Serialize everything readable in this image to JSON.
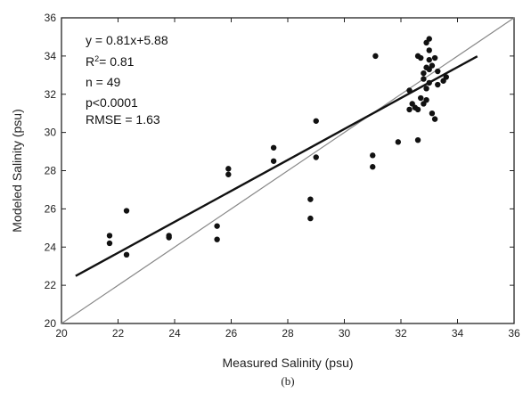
{
  "chart_data": {
    "type": "scatter",
    "panel_label": "(b)",
    "xlabel": "Measured Salinity (psu)",
    "ylabel": "Modeled Salinity (psu)",
    "xlim": [
      20,
      36
    ],
    "ylim": [
      20,
      36
    ],
    "xticks": [
      20,
      22,
      24,
      26,
      28,
      30,
      32,
      34,
      36
    ],
    "yticks": [
      20,
      22,
      24,
      26,
      28,
      30,
      32,
      34,
      36
    ],
    "grid": false,
    "stats": [
      {
        "id": "equation",
        "text": "y = 0.81x+5.88"
      },
      {
        "id": "r2",
        "prefix": "R",
        "sup": "2",
        "suffix": "= 0.81"
      },
      {
        "id": "n",
        "text": "n = 49"
      },
      {
        "id": "p",
        "text": "p<0.0001"
      },
      {
        "id": "rmse",
        "text": "RMSE = 1.63"
      }
    ],
    "regression_line": {
      "slope": 0.81,
      "intercept": 5.88,
      "x_range": [
        20.5,
        34.7
      ]
    },
    "one_to_one_line": {
      "x_range": [
        20,
        36
      ]
    },
    "points": [
      {
        "x": 21.7,
        "y": 24.6
      },
      {
        "x": 21.7,
        "y": 24.2
      },
      {
        "x": 22.3,
        "y": 25.9
      },
      {
        "x": 22.3,
        "y": 23.6
      },
      {
        "x": 23.8,
        "y": 24.6
      },
      {
        "x": 23.8,
        "y": 24.5
      },
      {
        "x": 25.5,
        "y": 25.1
      },
      {
        "x": 25.5,
        "y": 24.4
      },
      {
        "x": 25.9,
        "y": 28.1
      },
      {
        "x": 25.9,
        "y": 27.8
      },
      {
        "x": 27.5,
        "y": 29.2
      },
      {
        "x": 27.5,
        "y": 28.5
      },
      {
        "x": 28.8,
        "y": 26.5
      },
      {
        "x": 28.8,
        "y": 25.5
      },
      {
        "x": 29.0,
        "y": 30.6
      },
      {
        "x": 29.0,
        "y": 28.7
      },
      {
        "x": 31.0,
        "y": 28.8
      },
      {
        "x": 31.0,
        "y": 28.2
      },
      {
        "x": 31.1,
        "y": 34.0
      },
      {
        "x": 31.9,
        "y": 29.5
      },
      {
        "x": 32.3,
        "y": 32.2
      },
      {
        "x": 32.3,
        "y": 31.2
      },
      {
        "x": 32.4,
        "y": 31.5
      },
      {
        "x": 32.5,
        "y": 31.3
      },
      {
        "x": 32.6,
        "y": 29.6
      },
      {
        "x": 32.6,
        "y": 31.2
      },
      {
        "x": 32.6,
        "y": 34.0
      },
      {
        "x": 32.7,
        "y": 31.8
      },
      {
        "x": 32.7,
        "y": 33.9
      },
      {
        "x": 32.8,
        "y": 33.1
      },
      {
        "x": 32.8,
        "y": 32.8
      },
      {
        "x": 32.8,
        "y": 31.5
      },
      {
        "x": 32.9,
        "y": 34.7
      },
      {
        "x": 32.9,
        "y": 33.4
      },
      {
        "x": 32.9,
        "y": 32.3
      },
      {
        "x": 32.9,
        "y": 31.7
      },
      {
        "x": 33.0,
        "y": 34.9
      },
      {
        "x": 33.0,
        "y": 33.8
      },
      {
        "x": 33.0,
        "y": 33.3
      },
      {
        "x": 33.0,
        "y": 32.6
      },
      {
        "x": 33.1,
        "y": 33.5
      },
      {
        "x": 33.1,
        "y": 31.0
      },
      {
        "x": 33.2,
        "y": 33.9
      },
      {
        "x": 33.2,
        "y": 30.7
      },
      {
        "x": 33.3,
        "y": 33.2
      },
      {
        "x": 33.3,
        "y": 32.5
      },
      {
        "x": 33.5,
        "y": 32.7
      },
      {
        "x": 33.6,
        "y": 32.9
      },
      {
        "x": 33.0,
        "y": 34.3
      }
    ]
  }
}
